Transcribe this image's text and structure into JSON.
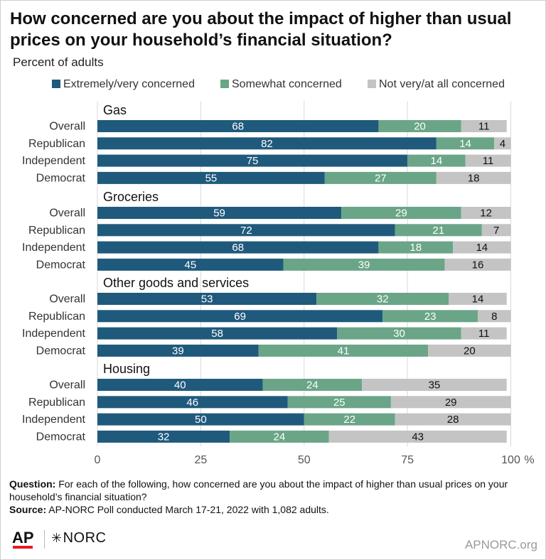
{
  "title": "How concerned are you about the impact of higher than usual prices on your household’s financial situation?",
  "subtitle": "Percent of adults",
  "colors": {
    "extremely": "#1f5a7c",
    "somewhat": "#6aa587",
    "not": "#c4c4c4",
    "grid": "#d9d9d9"
  },
  "chart_data": {
    "type": "bar",
    "orientation": "horizontal",
    "stacked": true,
    "xlim": [
      0,
      100
    ],
    "xticks": [
      0,
      25,
      50,
      75,
      100
    ],
    "x_unit": "%",
    "legend_position": "top",
    "series_names": [
      "Extremely/very concerned",
      "Somewhat concerned",
      "Not very/at all concerned"
    ],
    "groups": [
      {
        "name": "Gas",
        "rows": [
          {
            "label": "Overall",
            "values": [
              68,
              20,
              11
            ]
          },
          {
            "label": "Republican",
            "values": [
              82,
              14,
              4
            ]
          },
          {
            "label": "Independent",
            "values": [
              75,
              14,
              11
            ]
          },
          {
            "label": "Democrat",
            "values": [
              55,
              27,
              18
            ]
          }
        ]
      },
      {
        "name": "Groceries",
        "rows": [
          {
            "label": "Overall",
            "values": [
              59,
              29,
              12
            ]
          },
          {
            "label": "Republican",
            "values": [
              72,
              21,
              7
            ]
          },
          {
            "label": "Independent",
            "values": [
              68,
              18,
              14
            ]
          },
          {
            "label": "Democrat",
            "values": [
              45,
              39,
              16
            ]
          }
        ]
      },
      {
        "name": "Other goods and services",
        "rows": [
          {
            "label": "Overall",
            "values": [
              53,
              32,
              14
            ]
          },
          {
            "label": "Republican",
            "values": [
              69,
              23,
              8
            ]
          },
          {
            "label": "Independent",
            "values": [
              58,
              30,
              11
            ]
          },
          {
            "label": "Democrat",
            "values": [
              39,
              41,
              20
            ]
          }
        ]
      },
      {
        "name": "Housing",
        "rows": [
          {
            "label": "Overall",
            "values": [
              40,
              24,
              35
            ]
          },
          {
            "label": "Republican",
            "values": [
              46,
              25,
              29
            ]
          },
          {
            "label": "Independent",
            "values": [
              50,
              22,
              28
            ]
          },
          {
            "label": "Democrat",
            "values": [
              32,
              24,
              43
            ]
          }
        ]
      }
    ]
  },
  "footer": {
    "question_label": "Question:",
    "question_text": "For each of the following, how concerned are you about the impact of higher than usual prices on your household’s financial situation?",
    "source_label": "Source:",
    "source_text": "AP-NORC Poll conducted March 17-21, 2022 with 1,082 adults."
  },
  "logos": {
    "ap": "AP",
    "norc": "NORC"
  },
  "site": "APNORC.org"
}
